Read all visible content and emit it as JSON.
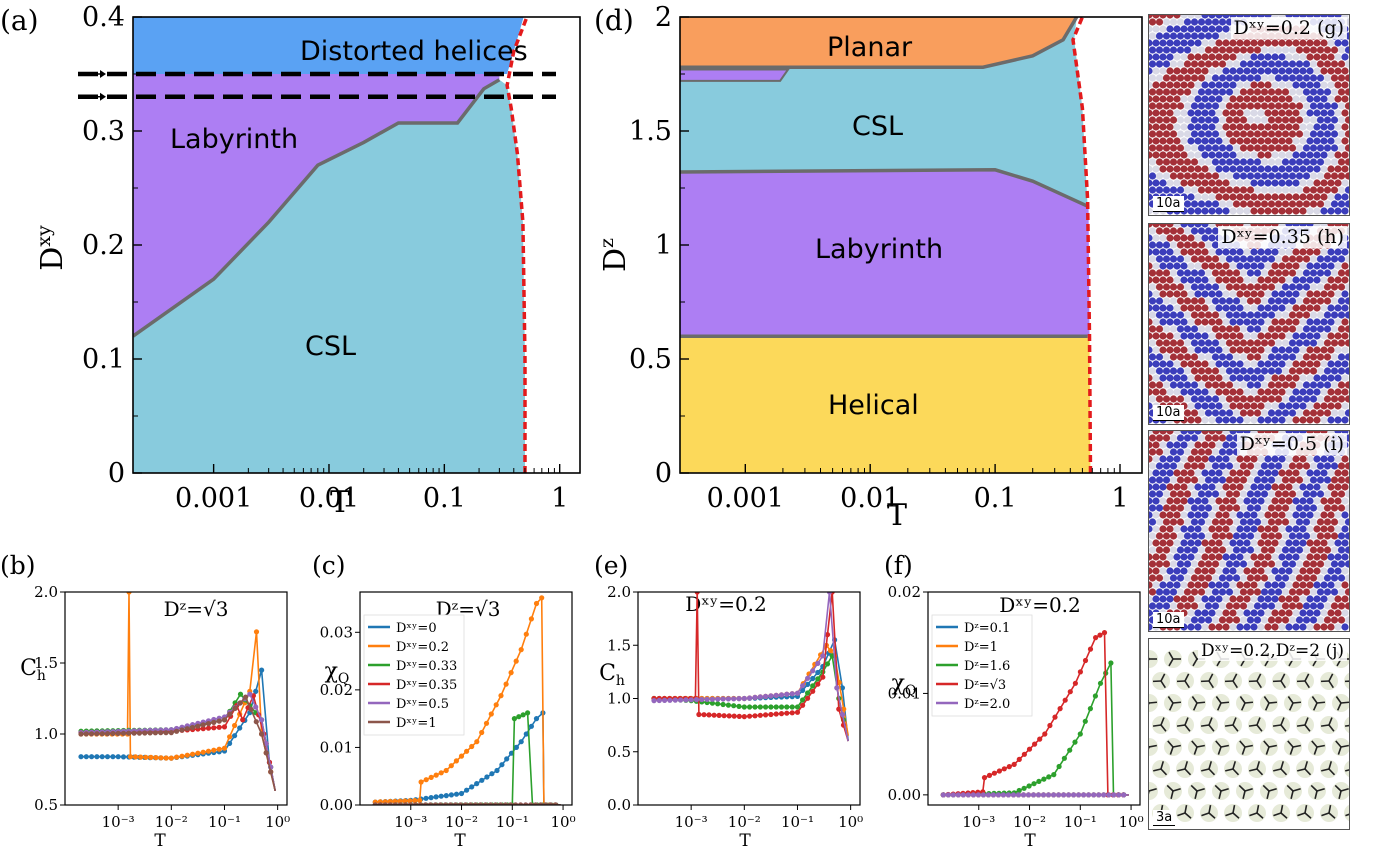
{
  "panels": {
    "a": {
      "letter": "(a)",
      "ylabel": "D",
      "ylabel_sup": "xy",
      "xlabel": "T",
      "yticks": [
        "0",
        "0.1",
        "0.2",
        "0.3",
        "0.4"
      ],
      "xticks": [
        "0.001",
        "0.01",
        "0.1",
        "1"
      ],
      "regions": {
        "distorted": "Distorted helices",
        "labyrinth": "Labyrinth",
        "csl": "CSL"
      }
    },
    "d": {
      "letter": "(d)",
      "ylabel": "D",
      "ylabel_sup": "z",
      "xlabel": "T",
      "yticks": [
        "0",
        "0.5",
        "1",
        "1.5",
        "2"
      ],
      "xticks": [
        "0.001",
        "0.01",
        "0.1",
        "1"
      ],
      "regions": {
        "planar": "Planar",
        "csl": "CSL",
        "labyrinth": "Labyrinth",
        "helical": "Helical"
      }
    },
    "b": {
      "letter": "(b)",
      "ylabel": "C",
      "ylabel_sub": "h",
      "xlabel": "T",
      "title": "Dᶻ=√3",
      "yticks": [
        "0.5",
        "1.0",
        "1.5",
        "2.0"
      ]
    },
    "c": {
      "letter": "(c)",
      "ylabel": "χ",
      "ylabel_sub": "Q",
      "xlabel": "T",
      "title": "Dᶻ=√3",
      "yticks": [
        "0.00",
        "0.01",
        "0.02",
        "0.03"
      ],
      "legend": [
        "Dˣʸ=0",
        "Dˣʸ=0.2",
        "Dˣʸ=0.33",
        "Dˣʸ=0.35",
        "Dˣʸ=0.5",
        "Dˣʸ=1"
      ]
    },
    "e": {
      "letter": "(e)",
      "ylabel": "C",
      "ylabel_sub": "h",
      "xlabel": "T",
      "title": "Dˣʸ=0.2",
      "yticks": [
        "0.0",
        "0.5",
        "1.0",
        "1.5",
        "2.0"
      ]
    },
    "f": {
      "letter": "(f)",
      "ylabel": "χ",
      "ylabel_sub": "Q",
      "xlabel": "T",
      "title": "Dˣʸ=0.2",
      "yticks": [
        "0.00",
        "0.01",
        "0.02"
      ],
      "legend": [
        "Dᶻ=0.1",
        "Dᶻ=1",
        "Dᶻ=1.6",
        "Dᶻ=√3",
        "Dᶻ=2.0"
      ]
    },
    "g": {
      "label": "Dˣʸ=0.2  (g)",
      "scale": "10a"
    },
    "h": {
      "label": "Dˣʸ=0.35  (h)",
      "scale": "10a"
    },
    "i": {
      "label": "Dˣʸ=0.5   (i)",
      "scale": "10a"
    },
    "j": {
      "label": "Dˣʸ=0.2,Dᶻ=2  (j)",
      "scale": "3a"
    }
  },
  "small_xticks": [
    "10⁻³",
    "10⁻²",
    "10⁻¹",
    "10⁰"
  ],
  "colors": {
    "distorted": "#5aa2f3",
    "labyrinth": "#ad7ef3",
    "csl": "#88cbdd",
    "planar": "#f99e5d",
    "helical": "#fcd95a",
    "boundary": "#6b6b6b",
    "transition": "#e31a1c",
    "s0": "#1f77b4",
    "s1": "#ff7f0e",
    "s2": "#2ca02c",
    "s3": "#d62728",
    "s4": "#9467bd",
    "s5": "#8c564b"
  },
  "chart_data": [
    {
      "id": "a",
      "type": "area",
      "xscale": "log",
      "xlim": [
        0.0002,
        1.5
      ],
      "ylim": [
        0,
        0.4
      ],
      "xlabel": "T",
      "ylabel": "Dxy",
      "csl_labyrinth_boundary": [
        [
          0.0002,
          0.12
        ],
        [
          0.001,
          0.17
        ],
        [
          0.003,
          0.22
        ],
        [
          0.008,
          0.27
        ],
        [
          0.02,
          0.29
        ],
        [
          0.04,
          0.307
        ],
        [
          0.13,
          0.307
        ],
        [
          0.22,
          0.337
        ],
        [
          0.3,
          0.345
        ]
      ],
      "labyrinth_distorted_boundary": [
        [
          0.0002,
          0.35
        ],
        [
          0.3,
          0.35
        ]
      ],
      "transition_curve": [
        [
          0.5,
          0
        ],
        [
          0.5,
          0.1
        ],
        [
          0.48,
          0.22
        ],
        [
          0.43,
          0.28
        ],
        [
          0.38,
          0.32
        ],
        [
          0.35,
          0.34
        ],
        [
          0.4,
          0.37
        ],
        [
          0.52,
          0.4
        ]
      ],
      "arrows_Dxy": [
        0.35,
        0.33
      ]
    },
    {
      "id": "d",
      "type": "area",
      "xscale": "log",
      "xlim": [
        0.0003,
        1.5
      ],
      "ylim": [
        0,
        2
      ],
      "xlabel": "T",
      "ylabel": "Dz",
      "helical_labyrinth_boundary": [
        [
          0.0003,
          0.6
        ],
        [
          0.55,
          0.6
        ]
      ],
      "labyrinth_csl_boundary": [
        [
          0.0003,
          1.32
        ],
        [
          0.1,
          1.33
        ],
        [
          0.2,
          1.28
        ],
        [
          0.55,
          1.17
        ]
      ],
      "csl_planar_boundary": [
        [
          0.0003,
          1.78
        ],
        [
          0.08,
          1.78
        ],
        [
          0.2,
          1.83
        ],
        [
          0.35,
          1.9
        ],
        [
          0.45,
          2.0
        ]
      ],
      "transition_curve": [
        [
          0.58,
          0
        ],
        [
          0.57,
          0.6
        ],
        [
          0.55,
          1.2
        ],
        [
          0.5,
          1.6
        ],
        [
          0.42,
          1.9
        ],
        [
          0.5,
          2.0
        ]
      ]
    },
    {
      "id": "b",
      "type": "line",
      "xscale": "log",
      "xlim": [
        0.0001,
        1.5
      ],
      "ylim": [
        0.5,
        2.0
      ],
      "title": "Dz=√3",
      "xlabel": "T",
      "ylabel": "Ch",
      "series": [
        {
          "color": "s0",
          "points": [
            [
              0.0002,
              0.84
            ],
            [
              0.001,
              0.84
            ],
            [
              0.01,
              0.83
            ],
            [
              0.1,
              0.88
            ],
            [
              0.3,
              1.15
            ],
            [
              0.5,
              1.45
            ],
            [
              0.7,
              0.8
            ],
            [
              0.9,
              0.6
            ]
          ]
        },
        {
          "color": "s1",
          "points": [
            [
              0.0002,
              1.0
            ],
            [
              0.0015,
              1.0
            ],
            [
              0.0016,
              2.0
            ],
            [
              0.0017,
              0.84
            ],
            [
              0.01,
              0.83
            ],
            [
              0.1,
              0.9
            ],
            [
              0.3,
              1.3
            ],
            [
              0.4,
              1.72
            ],
            [
              0.5,
              1.0
            ],
            [
              0.9,
              0.6
            ]
          ]
        },
        {
          "color": "s2",
          "points": [
            [
              0.0002,
              1.02
            ],
            [
              0.01,
              1.03
            ],
            [
              0.1,
              1.1
            ],
            [
              0.2,
              1.28
            ],
            [
              0.3,
              1.2
            ],
            [
              0.5,
              1.1
            ],
            [
              0.9,
              0.6
            ]
          ]
        },
        {
          "color": "s3",
          "points": [
            [
              0.0002,
              1.01
            ],
            [
              0.01,
              1.02
            ],
            [
              0.1,
              1.05
            ],
            [
              0.17,
              1.2
            ],
            [
              0.22,
              1.1
            ],
            [
              0.35,
              1.27
            ],
            [
              0.55,
              1.0
            ],
            [
              0.9,
              0.6
            ]
          ]
        },
        {
          "color": "s4",
          "points": [
            [
              0.0002,
              1.01
            ],
            [
              0.01,
              1.03
            ],
            [
              0.1,
              1.12
            ],
            [
              0.3,
              1.28
            ],
            [
              0.5,
              1.1
            ],
            [
              0.9,
              0.6
            ]
          ]
        },
        {
          "color": "s5",
          "points": [
            [
              0.0002,
              1.0
            ],
            [
              0.01,
              1.01
            ],
            [
              0.1,
              1.1
            ],
            [
              0.25,
              1.26
            ],
            [
              0.5,
              1.0
            ],
            [
              0.9,
              0.6
            ]
          ]
        }
      ]
    },
    {
      "id": "c",
      "type": "line",
      "xscale": "log",
      "xlim": [
        0.0001,
        1.5
      ],
      "ylim": [
        0,
        0.037
      ],
      "title": "Dz=√3",
      "xlabel": "T",
      "ylabel": "χQ",
      "series": [
        {
          "name": "Dxy=0",
          "color": "s0",
          "points": [
            [
              0.0002,
              0.0005
            ],
            [
              0.001,
              0.0008
            ],
            [
              0.01,
              0.002
            ],
            [
              0.05,
              0.006
            ],
            [
              0.15,
              0.011
            ],
            [
              0.3,
              0.015
            ],
            [
              0.4,
              0.016
            ],
            [
              0.42,
              0.0
            ],
            [
              0.9,
              0.0
            ]
          ]
        },
        {
          "name": "Dxy=0.2",
          "color": "s1",
          "points": [
            [
              0.0002,
              0.0005
            ],
            [
              0.0015,
              0.0008
            ],
            [
              0.0016,
              0.004
            ],
            [
              0.005,
              0.006
            ],
            [
              0.02,
              0.011
            ],
            [
              0.06,
              0.019
            ],
            [
              0.15,
              0.027
            ],
            [
              0.3,
              0.035
            ],
            [
              0.38,
              0.036
            ],
            [
              0.42,
              0.0
            ],
            [
              0.9,
              0.0
            ]
          ]
        },
        {
          "name": "Dxy=0.33",
          "color": "s2",
          "points": [
            [
              0.0002,
              0.0
            ],
            [
              0.1,
              0.0
            ],
            [
              0.11,
              0.015
            ],
            [
              0.2,
              0.016
            ],
            [
              0.25,
              0.0
            ],
            [
              0.9,
              0.0
            ]
          ]
        },
        {
          "name": "Dxy=0.35",
          "color": "s3",
          "points": [
            [
              0.0002,
              0.0
            ],
            [
              0.9,
              0.0
            ]
          ]
        },
        {
          "name": "Dxy=0.5",
          "color": "s4",
          "points": [
            [
              0.0002,
              0.0
            ],
            [
              0.9,
              0.0
            ]
          ]
        },
        {
          "name": "Dxy=1",
          "color": "s5",
          "points": [
            [
              0.0002,
              0.0
            ],
            [
              0.9,
              0.0
            ]
          ]
        }
      ]
    },
    {
      "id": "e",
      "type": "line",
      "xscale": "log",
      "xlim": [
        0.0001,
        1.5
      ],
      "ylim": [
        0,
        2.0
      ],
      "title": "Dxy=0.2",
      "xlabel": "T",
      "ylabel": "Ch",
      "series": [
        {
          "color": "s0",
          "points": [
            [
              0.0002,
              1.0
            ],
            [
              0.01,
              1.0
            ],
            [
              0.1,
              1.02
            ],
            [
              0.3,
              1.3
            ],
            [
              0.5,
              1.55
            ],
            [
              0.7,
              1.1
            ],
            [
              0.9,
              0.6
            ]
          ]
        },
        {
          "color": "s1",
          "points": [
            [
              0.0002,
              1.0
            ],
            [
              0.01,
              1.0
            ],
            [
              0.1,
              1.05
            ],
            [
              0.35,
              1.5
            ],
            [
              0.5,
              1.4
            ],
            [
              0.9,
              0.65
            ]
          ]
        },
        {
          "color": "s2",
          "points": [
            [
              0.0002,
              1.0
            ],
            [
              0.001,
              0.98
            ],
            [
              0.01,
              0.92
            ],
            [
              0.1,
              0.92
            ],
            [
              0.3,
              1.25
            ],
            [
              0.45,
              1.4
            ],
            [
              0.6,
              1.0
            ],
            [
              0.9,
              0.6
            ]
          ]
        },
        {
          "color": "s3",
          "points": [
            [
              0.0002,
              1.0
            ],
            [
              0.0012,
              1.0
            ],
            [
              0.0013,
              2.0
            ],
            [
              0.0014,
              0.85
            ],
            [
              0.01,
              0.83
            ],
            [
              0.1,
              0.87
            ],
            [
              0.3,
              1.2
            ],
            [
              0.45,
              2.0
            ],
            [
              0.6,
              0.9
            ],
            [
              0.9,
              0.6
            ]
          ]
        },
        {
          "color": "s4",
          "points": [
            [
              0.0002,
              0.98
            ],
            [
              0.01,
              1.0
            ],
            [
              0.1,
              1.05
            ],
            [
              0.3,
              1.4
            ],
            [
              0.4,
              2.0
            ],
            [
              0.55,
              1.1
            ],
            [
              0.9,
              0.6
            ]
          ]
        }
      ]
    },
    {
      "id": "f",
      "type": "line",
      "xscale": "log",
      "xlim": [
        0.0001,
        1.5
      ],
      "ylim": [
        -0.001,
        0.02
      ],
      "title": "Dxy=0.2",
      "xlabel": "T",
      "ylabel": "χQ",
      "series": [
        {
          "name": "Dz=0.1",
          "color": "s0",
          "points": [
            [
              0.0002,
              0.0
            ],
            [
              0.9,
              0.0
            ]
          ]
        },
        {
          "name": "Dz=1",
          "color": "s1",
          "points": [
            [
              0.0002,
              0.0
            ],
            [
              0.9,
              0.0
            ]
          ]
        },
        {
          "name": "Dz=1.6",
          "color": "s2",
          "points": [
            [
              0.0002,
              0.0
            ],
            [
              0.005,
              0.0002
            ],
            [
              0.03,
              0.002
            ],
            [
              0.1,
              0.006
            ],
            [
              0.25,
              0.011
            ],
            [
              0.4,
              0.013
            ],
            [
              0.45,
              0.0
            ],
            [
              0.9,
              0.0
            ]
          ]
        },
        {
          "name": "Dz=√3",
          "color": "s3",
          "points": [
            [
              0.0002,
              0.0
            ],
            [
              0.0012,
              0.0003
            ],
            [
              0.0013,
              0.0017
            ],
            [
              0.005,
              0.003
            ],
            [
              0.02,
              0.006
            ],
            [
              0.08,
              0.011
            ],
            [
              0.2,
              0.0155
            ],
            [
              0.3,
              0.016
            ],
            [
              0.35,
              0.0
            ],
            [
              0.9,
              0.0
            ]
          ]
        },
        {
          "name": "Dz=2.0",
          "color": "s4",
          "points": [
            [
              0.0002,
              0.0
            ],
            [
              0.9,
              0.0
            ]
          ]
        }
      ]
    }
  ]
}
